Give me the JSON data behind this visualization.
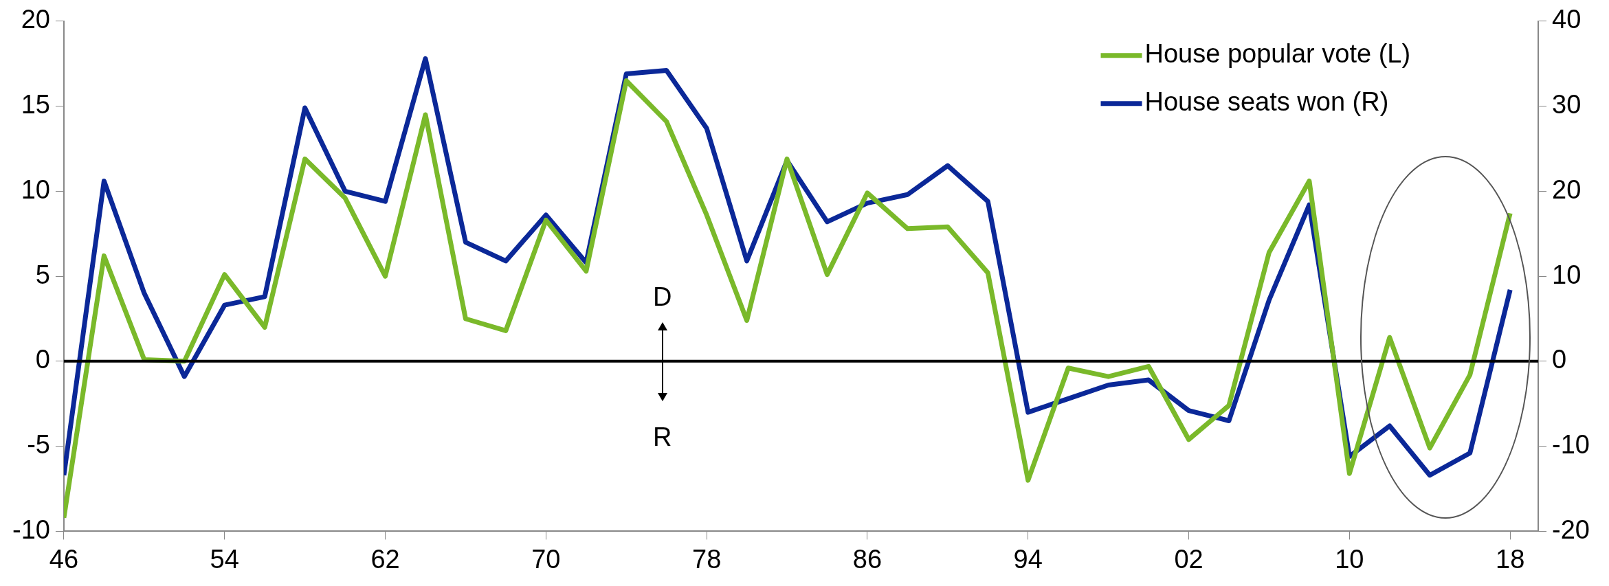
{
  "chart_data": {
    "type": "line",
    "x": [
      1946,
      1948,
      1950,
      1952,
      1954,
      1956,
      1958,
      1960,
      1962,
      1964,
      1966,
      1968,
      1970,
      1972,
      1974,
      1976,
      1978,
      1980,
      1982,
      1984,
      1986,
      1988,
      1990,
      1992,
      1994,
      1996,
      1998,
      2000,
      2002,
      2004,
      2006,
      2008,
      2010,
      2012,
      2014,
      2016,
      2018
    ],
    "series": [
      {
        "name": "House popular vote (L)",
        "color": "#7ab92a",
        "values": [
          -9.2,
          6.2,
          0.1,
          0,
          5.1,
          2.0,
          11.9,
          9.6,
          5.0,
          14.5,
          2.5,
          1.8,
          8.3,
          5.3,
          16.5,
          14.1,
          8.6,
          2.4,
          11.9,
          5.1,
          9.9,
          7.8,
          7.9,
          5.2,
          -7.0,
          -0.4,
          -0.9,
          -0.3,
          -4.6,
          -2.6,
          6.4,
          10.6,
          -6.6,
          1.4,
          -5.1,
          -0.8,
          8.7
        ]
      },
      {
        "name": "House seats won (R)",
        "color": "#0b2898",
        "axis": "y2",
        "values": [
          -13.4,
          21.2,
          8,
          -1.8,
          6.6,
          7.6,
          29.8,
          20,
          18.8,
          35.6,
          14,
          11.8,
          17.2,
          11.6,
          33.8,
          34.2,
          27.4,
          11.8,
          23.6,
          16.4,
          18.6,
          19.6,
          23,
          18.8,
          -6,
          -4.4,
          -2.8,
          -2.2,
          -5.8,
          -7,
          7.2,
          18.4,
          -11.2,
          -7.6,
          -13.4,
          -10.8,
          8.4
        ]
      }
    ],
    "xlim": [
      1946,
      2019.4
    ],
    "xticks": [
      {
        "value": 1946,
        "label": "46"
      },
      {
        "value": 1954,
        "label": "54"
      },
      {
        "value": 1962,
        "label": "62"
      },
      {
        "value": 1970,
        "label": "70"
      },
      {
        "value": 1978,
        "label": "78"
      },
      {
        "value": 1986,
        "label": "86"
      },
      {
        "value": 1994,
        "label": "94"
      },
      {
        "value": 2002,
        "label": "02"
      },
      {
        "value": 2010,
        "label": "10"
      },
      {
        "value": 2018,
        "label": "18"
      }
    ],
    "ylim": [
      -10,
      20
    ],
    "yticks": [
      -10,
      -5,
      0,
      5,
      10,
      15,
      20
    ],
    "y2lim": [
      -20,
      40
    ],
    "y2ticks": [
      -20,
      -10,
      0,
      10,
      20,
      30,
      40
    ],
    "ref_lines": [
      {
        "axis": "y",
        "value": 0,
        "color": "#000000"
      }
    ],
    "annotations": [
      "D",
      "R"
    ],
    "legend": "top right",
    "grid": false,
    "marker": "none",
    "line_style": "solid"
  }
}
